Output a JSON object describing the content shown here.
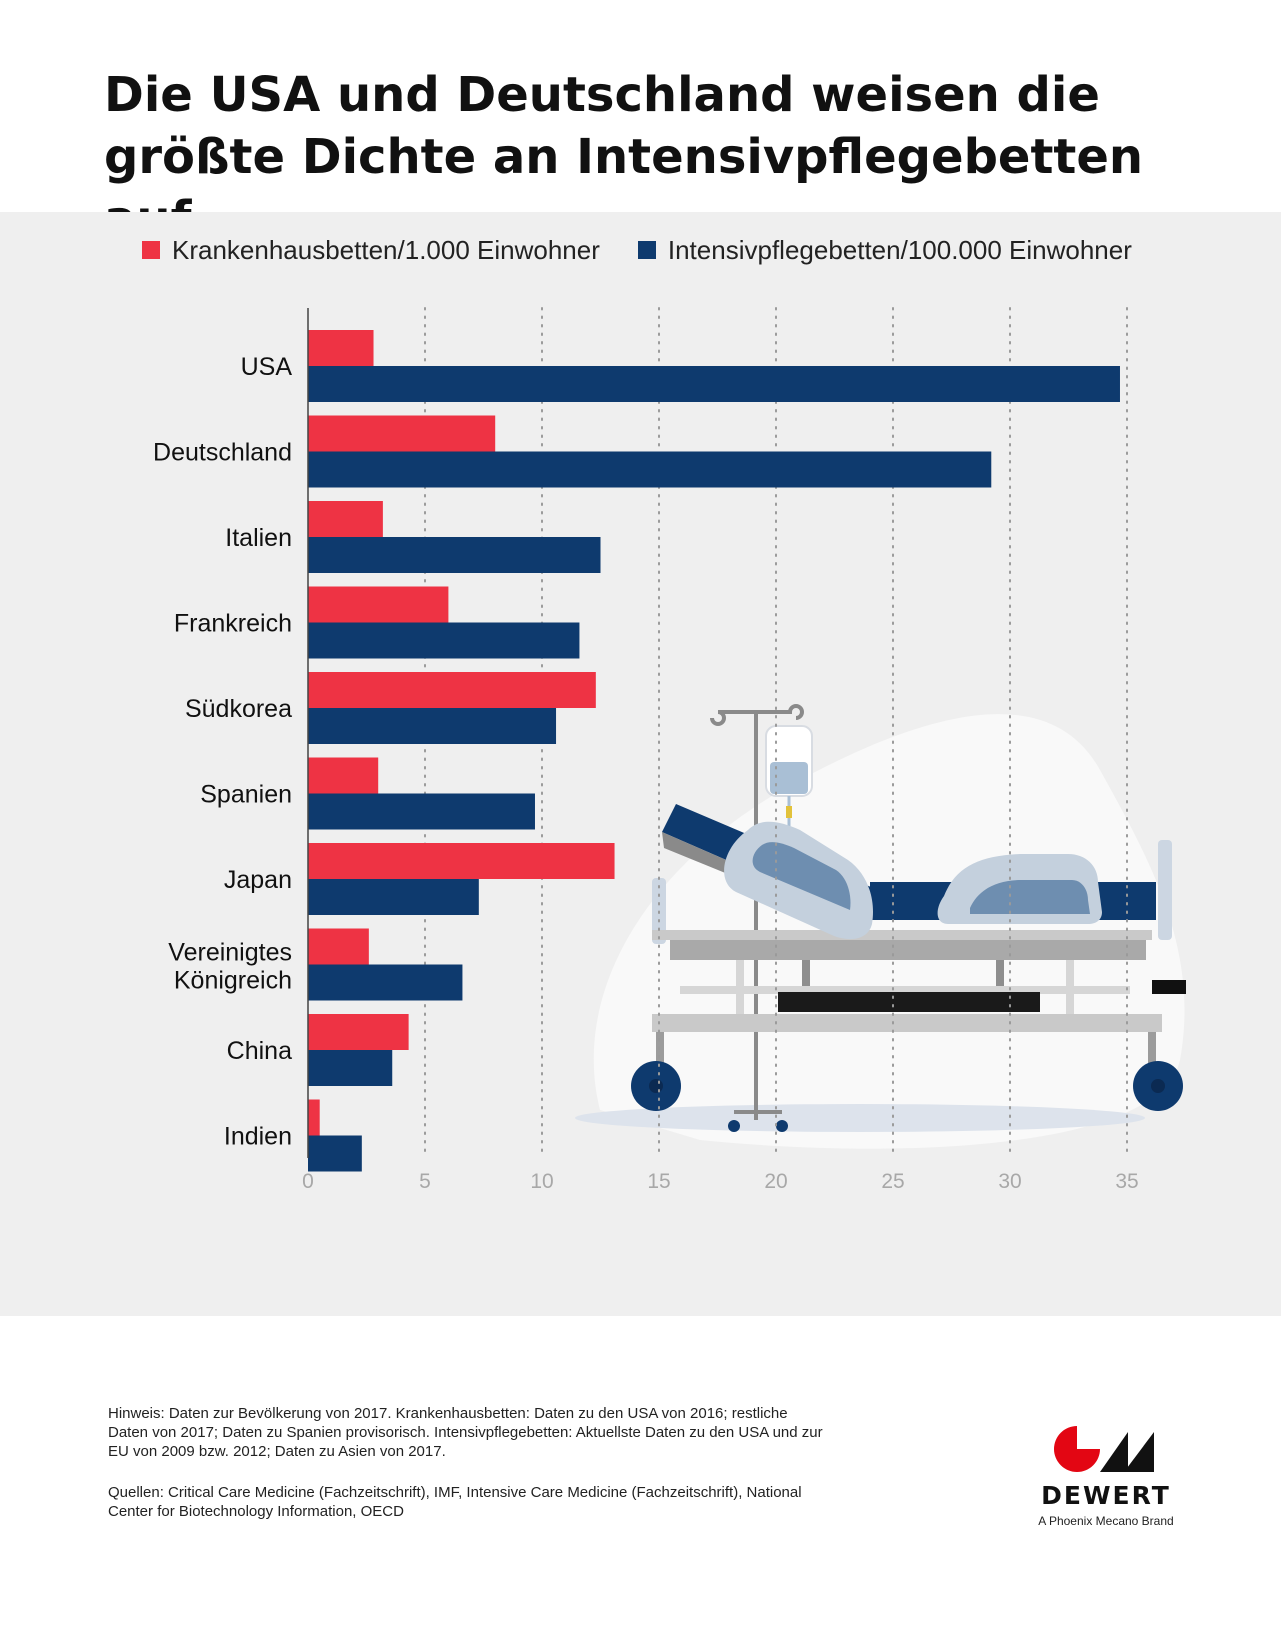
{
  "page": {
    "title_line1": "Die USA und Deutschland weisen die",
    "title_line2": "größte Dichte an Intensivpflegebetten auf",
    "note": "Hinweis: Daten zur Bevölkerung von 2017. Krankenhausbetten: Daten zu den USA von 2016; restliche Daten von 2017; Daten zu Spanien provisorisch. Intensivpflegebetten: Aktuellste Daten zu den USA und zur EU von 2009 bzw. 2012; Daten zu Asien von 2017.",
    "sources": "Quellen: Critical Care Medicine (Fachzeitschrift), IMF, Intensive Care Medicine (Fachzeitschrift), National Center for Biotechnology Information, OECD",
    "brand_name": "DEWERT",
    "brand_tagline": "A Phoenix Mecano Brand",
    "brand_logo_color": "#e30613"
  },
  "chart_data": {
    "type": "bar",
    "orientation": "horizontal",
    "categories": [
      "USA",
      "Deutschland",
      "Italien",
      "Frankreich",
      "Südkorea",
      "Spanien",
      "Japan",
      "Vereinigtes Königreich",
      "China",
      "Indien"
    ],
    "series": [
      {
        "name": "Krankenhausbetten/1.000 Einwohner",
        "color": "#ee3344",
        "values": [
          2.8,
          8.0,
          3.2,
          6.0,
          12.3,
          3.0,
          13.1,
          2.6,
          4.3,
          0.5
        ]
      },
      {
        "name": "Intensivpflegebetten/100.000 Einwohner",
        "color": "#0e3a6e",
        "values": [
          34.7,
          29.2,
          12.5,
          11.6,
          10.6,
          9.7,
          7.3,
          6.6,
          3.6,
          2.3
        ]
      }
    ],
    "xlim": [
      0,
      35
    ],
    "xticks": [
      "0",
      "5",
      "10",
      "15",
      "20",
      "25",
      "30",
      "35"
    ],
    "grid": "vertical-dotted",
    "legend": "top"
  }
}
